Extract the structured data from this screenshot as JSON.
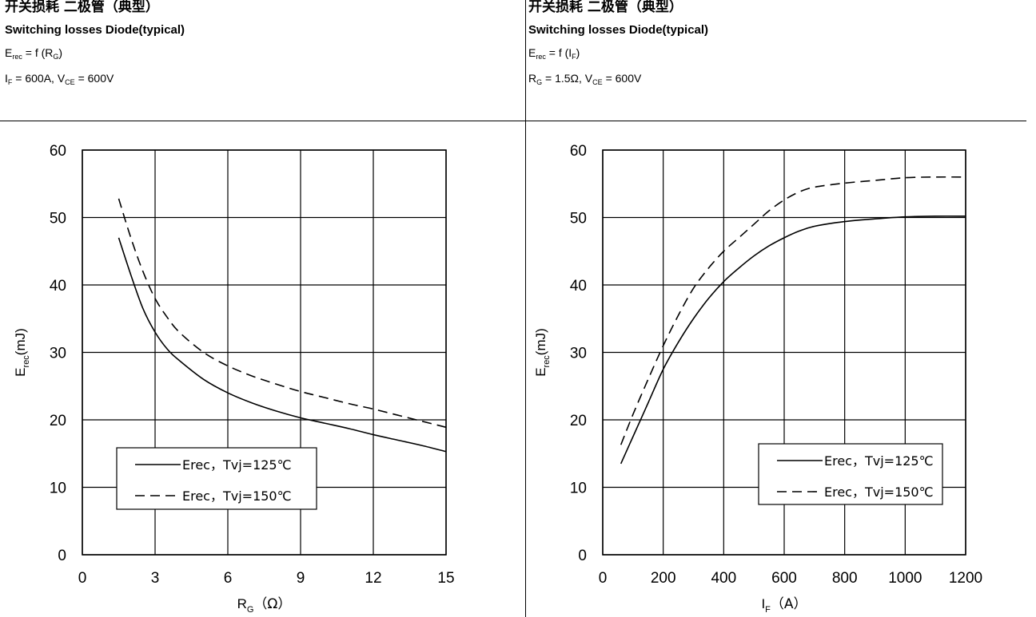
{
  "panels": [
    {
      "title_cn": "开关损耗 二极管（典型）",
      "title_en": "Switching losses Diode(typical)",
      "func": {
        "left": "E",
        "left_sub": "rec",
        "mid": "= f (R",
        "mid_sub": "G",
        "tail": ")"
      },
      "cond": {
        "a": "I",
        "a_sub": "F",
        "b": "= 600A, V",
        "b_sub": "CE",
        "c": "= 600V"
      }
    },
    {
      "title_cn": "开关损耗 二极管（典型）",
      "title_en": "Switching losses Diode(typical)",
      "func": {
        "left": "E",
        "left_sub": "rec",
        "mid": "= f (I",
        "mid_sub": "F",
        "tail": ")"
      },
      "cond": {
        "a": "R",
        "a_sub": "G",
        "b": "= 1.5Ω, V",
        "b_sub": "CE",
        "c": "= 600V"
      }
    }
  ],
  "chart_data": [
    {
      "type": "line",
      "xlabel": {
        "main": "R",
        "sub": "G",
        "unit": "（Ω）"
      },
      "ylabel": {
        "main": "E",
        "sub": "rec",
        "unit": "(mJ)"
      },
      "xlim": [
        0,
        15
      ],
      "ylim": [
        0,
        60
      ],
      "xticks": [
        0,
        3,
        6,
        9,
        12,
        15
      ],
      "yticks": [
        0,
        10,
        20,
        30,
        40,
        50,
        60
      ],
      "grid": true,
      "legend_position": "bottom-left",
      "series": [
        {
          "name": "Erec，Tvj=125℃",
          "dash": "solid",
          "x": [
            1.5,
            2.0,
            2.5,
            3.0,
            3.5,
            4.0,
            5.0,
            6.0,
            7.0,
            8.0,
            9.0,
            10.0,
            11.0,
            12.0,
            13.0,
            14.0,
            15.0
          ],
          "y": [
            47.0,
            41.5,
            36.5,
            33.0,
            30.5,
            28.8,
            26.0,
            24.0,
            22.5,
            21.3,
            20.3,
            19.5,
            18.7,
            17.8,
            17.0,
            16.2,
            15.3
          ]
        },
        {
          "name": "Erec，Tvj=150℃",
          "dash": "dashed",
          "x": [
            1.5,
            2.0,
            2.5,
            3.0,
            3.5,
            4.0,
            5.0,
            6.0,
            7.0,
            8.0,
            9.0,
            10.0,
            11.0,
            12.0,
            13.0,
            14.0,
            15.0
          ],
          "y": [
            52.8,
            47.0,
            42.0,
            38.0,
            35.2,
            33.0,
            30.0,
            28.0,
            26.5,
            25.3,
            24.2,
            23.3,
            22.4,
            21.6,
            20.7,
            19.8,
            18.9
          ]
        }
      ]
    },
    {
      "type": "line",
      "xlabel": {
        "main": "I",
        "sub": "F",
        "unit": "（A）"
      },
      "ylabel": {
        "main": "E",
        "sub": "rec",
        "unit": "(mJ)"
      },
      "xlim": [
        0,
        1200
      ],
      "ylim": [
        0,
        60
      ],
      "xticks": [
        0,
        200,
        400,
        600,
        800,
        1000,
        1200
      ],
      "yticks": [
        0,
        10,
        20,
        30,
        40,
        50,
        60
      ],
      "grid": true,
      "legend_position": "bottom-right",
      "series": [
        {
          "name": "Erec，Tvj=125℃",
          "dash": "solid",
          "x": [
            60,
            100,
            150,
            200,
            250,
            300,
            350,
            400,
            450,
            500,
            550,
            600,
            650,
            700,
            800,
            900,
            1000,
            1100,
            1200
          ],
          "y": [
            13.5,
            17.5,
            22.5,
            27.5,
            31.5,
            35.0,
            38.0,
            40.5,
            42.5,
            44.3,
            45.8,
            47.0,
            48.0,
            48.7,
            49.4,
            49.8,
            50.1,
            50.2,
            50.2
          ]
        },
        {
          "name": "Erec，Tvj=150℃",
          "dash": "dashed",
          "x": [
            60,
            100,
            150,
            200,
            250,
            300,
            350,
            400,
            450,
            500,
            550,
            600,
            650,
            700,
            800,
            900,
            1000,
            1100,
            1200
          ],
          "y": [
            16.3,
            20.8,
            26.0,
            31.0,
            35.5,
            39.5,
            42.5,
            45.0,
            47.0,
            49.0,
            51.0,
            52.6,
            53.8,
            54.5,
            55.1,
            55.5,
            55.9,
            56.0,
            56.0
          ]
        }
      ]
    }
  ]
}
